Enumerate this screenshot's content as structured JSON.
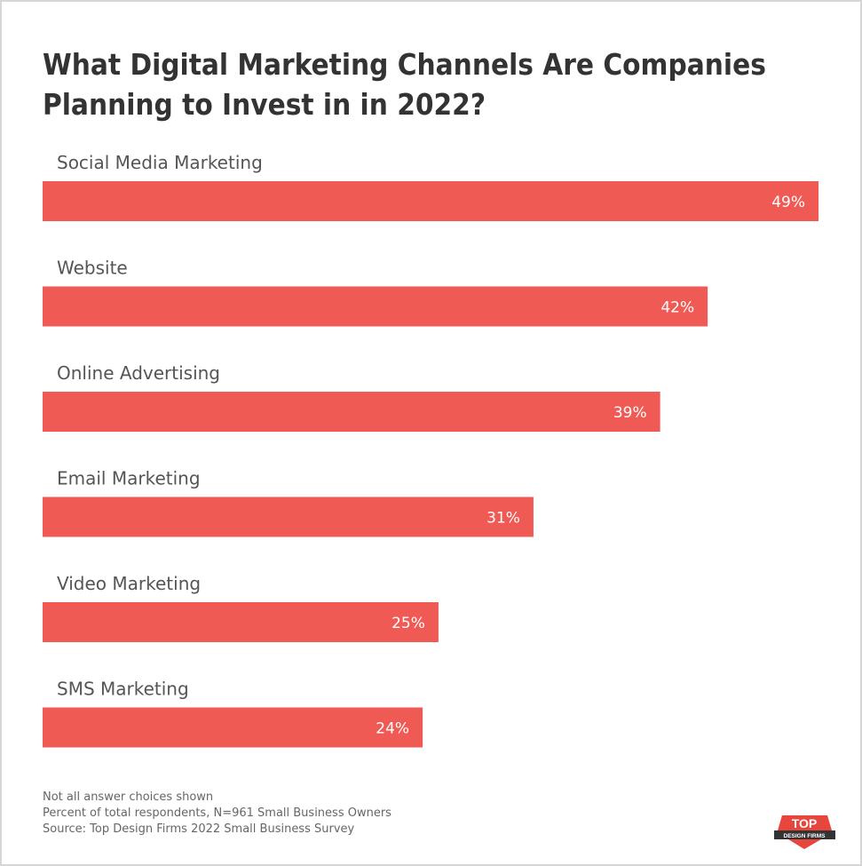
{
  "chart_data": {
    "type": "bar",
    "orientation": "horizontal",
    "title": "What Digital Marketing Channels Are Companies Planning to Invest in in 2022?",
    "categories": [
      "Social Media Marketing",
      "Website",
      "Online Advertising",
      "Email Marketing",
      "Video Marketing",
      "SMS Marketing"
    ],
    "values": [
      49,
      42,
      39,
      31,
      25,
      24
    ],
    "value_labels": [
      "49%",
      "42%",
      "39%",
      "31%",
      "25%",
      "24%"
    ],
    "color": "#f05a55",
    "notes": [
      "Not all answer choices shown",
      "Percent of total respondents, N=961 Small Business Owners",
      "Source: Top Design Firms 2022 Small Business Survey"
    ],
    "logo": {
      "top": "TOP",
      "bottom": "DESIGN FIRMS"
    }
  }
}
